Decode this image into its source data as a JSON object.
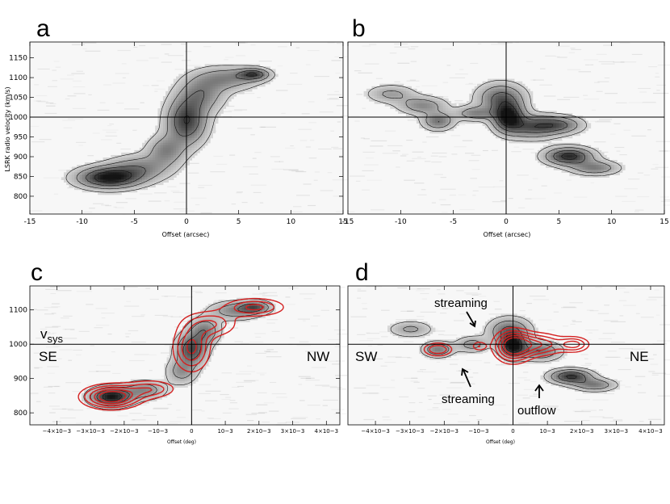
{
  "chart_data": [
    {
      "type": "heatmap",
      "panel": "a",
      "xlabel": "Offset (arcsec)",
      "ylabel": "LSRK radio velocity (km/s)",
      "xlim": [
        -15,
        15
      ],
      "ylim": [
        755,
        1190
      ],
      "x_ticks": [
        "-15",
        "-10",
        "-5",
        "0",
        "5",
        "10",
        "15"
      ],
      "x_tick_values": [
        -15,
        -10,
        -5,
        0,
        5,
        10,
        15
      ],
      "y_ticks": [
        "800",
        "850",
        "900",
        "950",
        "1000",
        "1050",
        "1100",
        "1150"
      ],
      "y_tick_values": [
        800,
        850,
        900,
        950,
        1000,
        1050,
        1100,
        1150
      ],
      "crosshair": {
        "x": 0,
        "y": 1000
      },
      "emission_peaks": [
        {
          "x": -7.5,
          "y": 845,
          "sx": 2.0,
          "sy": 18,
          "amp": 1.0
        },
        {
          "x": -4.5,
          "y": 870,
          "sx": 2.0,
          "sy": 22,
          "amp": 0.45
        },
        {
          "x": -2.0,
          "y": 915,
          "sx": 1.2,
          "sy": 25,
          "amp": 0.45
        },
        {
          "x": 0.0,
          "y": 990,
          "sx": 1.3,
          "sy": 40,
          "amp": 0.8
        },
        {
          "x": 1.5,
          "y": 1060,
          "sx": 1.5,
          "sy": 30,
          "amp": 0.45
        },
        {
          "x": 4.0,
          "y": 1100,
          "sx": 2.0,
          "sy": 20,
          "amp": 0.45
        },
        {
          "x": 6.5,
          "y": 1110,
          "sx": 1.0,
          "sy": 10,
          "amp": 0.7
        }
      ]
    },
    {
      "type": "heatmap",
      "panel": "b",
      "xlabel": "Offset (arcsec)",
      "xlim": [
        -15,
        15
      ],
      "ylim": [
        755,
        1190
      ],
      "x_ticks": [
        "-15",
        "-10",
        "-5",
        "0",
        "5",
        "10",
        "15"
      ],
      "x_tick_values": [
        -15,
        -10,
        -5,
        0,
        5,
        10,
        15
      ],
      "crosshair": {
        "x": 0,
        "y": 1000
      },
      "emission_peaks": [
        {
          "x": -11.0,
          "y": 1060,
          "sx": 1.5,
          "sy": 15,
          "amp": 0.35
        },
        {
          "x": -8.0,
          "y": 1030,
          "sx": 1.5,
          "sy": 15,
          "amp": 0.45
        },
        {
          "x": -6.5,
          "y": 990,
          "sx": 1.0,
          "sy": 15,
          "amp": 0.55
        },
        {
          "x": -3.0,
          "y": 1010,
          "sx": 1.2,
          "sy": 12,
          "amp": 0.45
        },
        {
          "x": -0.5,
          "y": 1050,
          "sx": 1.5,
          "sy": 25,
          "amp": 0.6
        },
        {
          "x": 0.2,
          "y": 1000,
          "sx": 1.0,
          "sy": 25,
          "amp": 1.0
        },
        {
          "x": 2.5,
          "y": 975,
          "sx": 1.5,
          "sy": 20,
          "amp": 0.6
        },
        {
          "x": 5.0,
          "y": 980,
          "sx": 1.5,
          "sy": 15,
          "amp": 0.6
        },
        {
          "x": 6.0,
          "y": 900,
          "sx": 1.5,
          "sy": 15,
          "amp": 0.9
        },
        {
          "x": 8.5,
          "y": 870,
          "sx": 1.5,
          "sy": 12,
          "amp": 0.5
        }
      ]
    },
    {
      "type": "heatmap",
      "panel": "c",
      "xlabel": "Offset (deg)",
      "xlim": [
        -0.0048,
        0.0044
      ],
      "ylim": [
        765,
        1170
      ],
      "x_ticks": [
        "−4×10−3",
        "−3×10−3",
        "−2×10−3",
        "−10−3",
        "0",
        "10−3",
        "2×10−3",
        "3×10−3",
        "4×10−3"
      ],
      "x_tick_values": [
        -0.004,
        -0.003,
        -0.002,
        -0.001,
        0,
        0.001,
        0.002,
        0.003,
        0.004
      ],
      "y_ticks": [
        "800",
        "900",
        "1000",
        "1100"
      ],
      "y_tick_values": [
        800,
        900,
        1000,
        1100
      ],
      "crosshair": {
        "x": 0,
        "y": 1000
      },
      "emission_peaks": [
        {
          "x": -0.0024,
          "y": 845,
          "sx": 0.0004,
          "sy": 18,
          "amp": 1.0
        },
        {
          "x": -0.0014,
          "y": 865,
          "sx": 0.0004,
          "sy": 18,
          "amp": 0.45
        },
        {
          "x": -0.0003,
          "y": 920,
          "sx": 0.0003,
          "sy": 25,
          "amp": 0.4
        },
        {
          "x": 0.0,
          "y": 985,
          "sx": 0.0003,
          "sy": 30,
          "amp": 0.75
        },
        {
          "x": 0.0004,
          "y": 1040,
          "sx": 0.0003,
          "sy": 25,
          "amp": 0.5
        },
        {
          "x": 0.0013,
          "y": 1100,
          "sx": 0.0005,
          "sy": 18,
          "amp": 0.45
        },
        {
          "x": 0.0019,
          "y": 1110,
          "sx": 0.0003,
          "sy": 12,
          "amp": 0.6
        }
      ],
      "contour_sources": [
        {
          "x": -0.0024,
          "y": 845,
          "sx": 0.00055,
          "sy": 22,
          "amp": 1.0
        },
        {
          "x": -0.0012,
          "y": 868,
          "sx": 0.0005,
          "sy": 18,
          "amp": 0.45
        },
        {
          "x": 0.0,
          "y": 990,
          "sx": 0.00035,
          "sy": 45,
          "amp": 0.7
        },
        {
          "x": 0.0006,
          "y": 1060,
          "sx": 0.0005,
          "sy": 25,
          "amp": 0.5
        },
        {
          "x": 0.0019,
          "y": 1110,
          "sx": 0.0006,
          "sy": 18,
          "amp": 0.55
        }
      ],
      "contour_levels": [
        0.2,
        0.35,
        0.5,
        0.65,
        0.8
      ],
      "contour_color": "#d42020",
      "annotations": {
        "vsys_label": "v",
        "vsys_sub": "sys",
        "left": "SE",
        "right": "NW"
      }
    },
    {
      "type": "heatmap",
      "panel": "d",
      "xlabel": "Offset (deg)",
      "xlim": [
        -0.0048,
        0.0044
      ],
      "ylim": [
        765,
        1170
      ],
      "x_ticks": [
        "−4×10−3",
        "−3×10−3",
        "−2×10−3",
        "−10−3",
        "0",
        "10−3",
        "2×10−3",
        "3×10−3",
        "4×10−3"
      ],
      "x_tick_values": [
        -0.004,
        -0.003,
        -0.002,
        -0.001,
        0,
        0.001,
        0.002,
        0.003,
        0.004
      ],
      "crosshair": {
        "x": 0,
        "y": 1000
      },
      "emission_peaks": [
        {
          "x": -0.003,
          "y": 1045,
          "sx": 0.0004,
          "sy": 15,
          "amp": 0.35
        },
        {
          "x": -0.0022,
          "y": 985,
          "sx": 0.0003,
          "sy": 15,
          "amp": 0.5
        },
        {
          "x": -0.0012,
          "y": 1000,
          "sx": 0.0003,
          "sy": 15,
          "amp": 0.4
        },
        {
          "x": -0.0001,
          "y": 1040,
          "sx": 0.0004,
          "sy": 25,
          "amp": 0.6
        },
        {
          "x": 0.0,
          "y": 995,
          "sx": 0.00025,
          "sy": 22,
          "amp": 1.0
        },
        {
          "x": 0.0008,
          "y": 980,
          "sx": 0.0004,
          "sy": 18,
          "amp": 0.55
        },
        {
          "x": 0.0017,
          "y": 905,
          "sx": 0.0004,
          "sy": 14,
          "amp": 0.85
        },
        {
          "x": 0.0024,
          "y": 880,
          "sx": 0.0004,
          "sy": 12,
          "amp": 0.5
        }
      ],
      "contour_sources": [
        {
          "x": -0.0022,
          "y": 985,
          "sx": 0.0003,
          "sy": 14,
          "amp": 0.5
        },
        {
          "x": -0.001,
          "y": 995,
          "sx": 0.00015,
          "sy": 10,
          "amp": 0.35
        },
        {
          "x": 0.0,
          "y": 995,
          "sx": 0.00035,
          "sy": 30,
          "amp": 1.0
        },
        {
          "x": 0.0008,
          "y": 1000,
          "sx": 0.00045,
          "sy": 22,
          "amp": 0.6
        },
        {
          "x": 0.0018,
          "y": 1000,
          "sx": 0.0003,
          "sy": 15,
          "amp": 0.55
        }
      ],
      "contour_levels": [
        0.2,
        0.35,
        0.5,
        0.65,
        0.8
      ],
      "contour_color": "#d42020",
      "annotations": {
        "left": "SW",
        "right": "NE",
        "streaming_top": "streaming",
        "streaming_bottom": "streaming",
        "outflow": "outflow"
      }
    }
  ],
  "panel_letters": [
    "a",
    "b",
    "c",
    "d"
  ]
}
